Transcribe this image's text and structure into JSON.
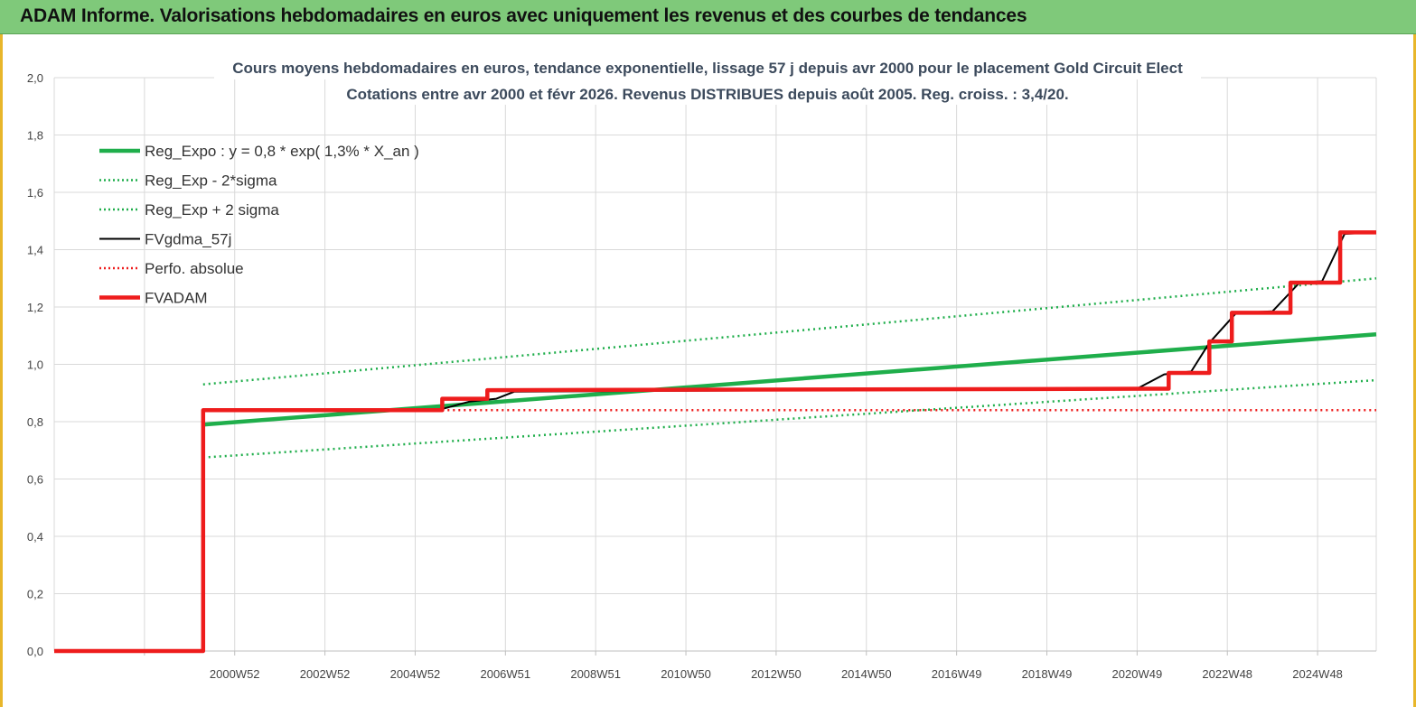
{
  "header": {
    "title": "ADAM Informe. Valorisations hebdomadaires en euros avec uniquement les revenus et des courbes de tendances"
  },
  "colors": {
    "green": "#1fae4b",
    "red": "#ee1c1c",
    "black": "#000000",
    "header_bg": "#7fc97a",
    "accent": "#e8b62a"
  },
  "chart_data": {
    "type": "line",
    "title_lines": [
      "Cours moyens hebdomadaires en euros, tendance exponentielle, lissage 57 j depuis avr 2000 pour le placement Gold Circuit Elect",
      "Cotations entre avr 2000 et févr 2026. Revenus DISTRIBUES depuis août 2005. Reg. croiss. : 3,4/20."
    ],
    "y_ticks": [
      "0,0",
      "0,2",
      "0,4",
      "0,6",
      "0,8",
      "1,0",
      "1,2",
      "1,4",
      "1,6",
      "1,8",
      "2,0"
    ],
    "ylim": [
      0,
      2
    ],
    "xlim": [
      1997.0,
      2026.3
    ],
    "x_tick_labels": [
      {
        "label": "2000W52",
        "x": 2001
      },
      {
        "label": "2002W52",
        "x": 2003
      },
      {
        "label": "2004W52",
        "x": 2005
      },
      {
        "label": "2006W51",
        "x": 2007
      },
      {
        "label": "2008W51",
        "x": 2009
      },
      {
        "label": "2010W50",
        "x": 2011
      },
      {
        "label": "2012W50",
        "x": 2013
      },
      {
        "label": "2014W50",
        "x": 2015
      },
      {
        "label": "2016W49",
        "x": 2017
      },
      {
        "label": "2018W49",
        "x": 2019
      },
      {
        "label": "2020W49",
        "x": 2021
      },
      {
        "label": "2022W48",
        "x": 2023
      },
      {
        "label": "2024W48",
        "x": 2025
      }
    ],
    "legend": {
      "position": "top-left",
      "entries": [
        {
          "name": "Reg_Expo : y = 0,8 * exp( 1,3% *  X_an )",
          "color": "#1fae4b",
          "style": "solid-thick"
        },
        {
          "name": "Reg_Exp - 2*sigma",
          "color": "#1fae4b",
          "style": "dotted"
        },
        {
          "name": "Reg_Exp + 2 sigma",
          "color": "#1fae4b",
          "style": "dotted"
        },
        {
          "name": "FVgdma_57j",
          "color": "#000000",
          "style": "solid"
        },
        {
          "name": "Perfo. absolue",
          "color": "#ee1c1c",
          "style": "dotted"
        },
        {
          "name": "FVADAM",
          "color": "#ee1c1c",
          "style": "solid-thick"
        }
      ]
    },
    "series": [
      {
        "name": "Reg_Expo : y = 0,8 * exp( 1,3% *  X_an )",
        "x": [
          2000.3,
          2026.3
        ],
        "y": [
          0.79,
          1.105
        ]
      },
      {
        "name": "Reg_Exp - 2*sigma",
        "x": [
          2000.3,
          2026.3
        ],
        "y": [
          0.675,
          0.945
        ]
      },
      {
        "name": "Reg_Exp + 2 sigma",
        "x": [
          2000.3,
          2026.3
        ],
        "y": [
          0.93,
          1.3
        ]
      },
      {
        "name": "FVgdma_57j",
        "x": [
          1997.0,
          2000.3,
          2000.3,
          2005.5,
          2006.2,
          2006.8,
          2007.2,
          2021.0,
          2021.6,
          2022.2,
          2022.6,
          2023.2,
          2024.0,
          2024.6,
          2025.1,
          2025.6,
          2026.3
        ],
        "y": [
          0.0,
          0.0,
          0.84,
          0.84,
          0.87,
          0.88,
          0.905,
          0.915,
          0.965,
          0.975,
          1.075,
          1.18,
          1.185,
          1.285,
          1.29,
          1.455,
          1.46
        ]
      },
      {
        "name": "Perfo. absolue",
        "x": [
          1997.0,
          2000.3,
          2000.3,
          2026.3
        ],
        "y": [
          0.0,
          0.0,
          0.84,
          0.84
        ]
      },
      {
        "name": "FVADAM",
        "x": [
          1997.0,
          2000.3,
          2000.3,
          2005.6,
          2005.6,
          2006.6,
          2006.6,
          2021.7,
          2021.7,
          2022.6,
          2022.6,
          2023.1,
          2023.1,
          2024.4,
          2024.4,
          2025.5,
          2025.5,
          2026.3
        ],
        "y": [
          0.0,
          0.0,
          0.84,
          0.84,
          0.88,
          0.88,
          0.91,
          0.915,
          0.97,
          0.97,
          1.08,
          1.08,
          1.18,
          1.18,
          1.285,
          1.285,
          1.46,
          1.46
        ]
      }
    ]
  }
}
